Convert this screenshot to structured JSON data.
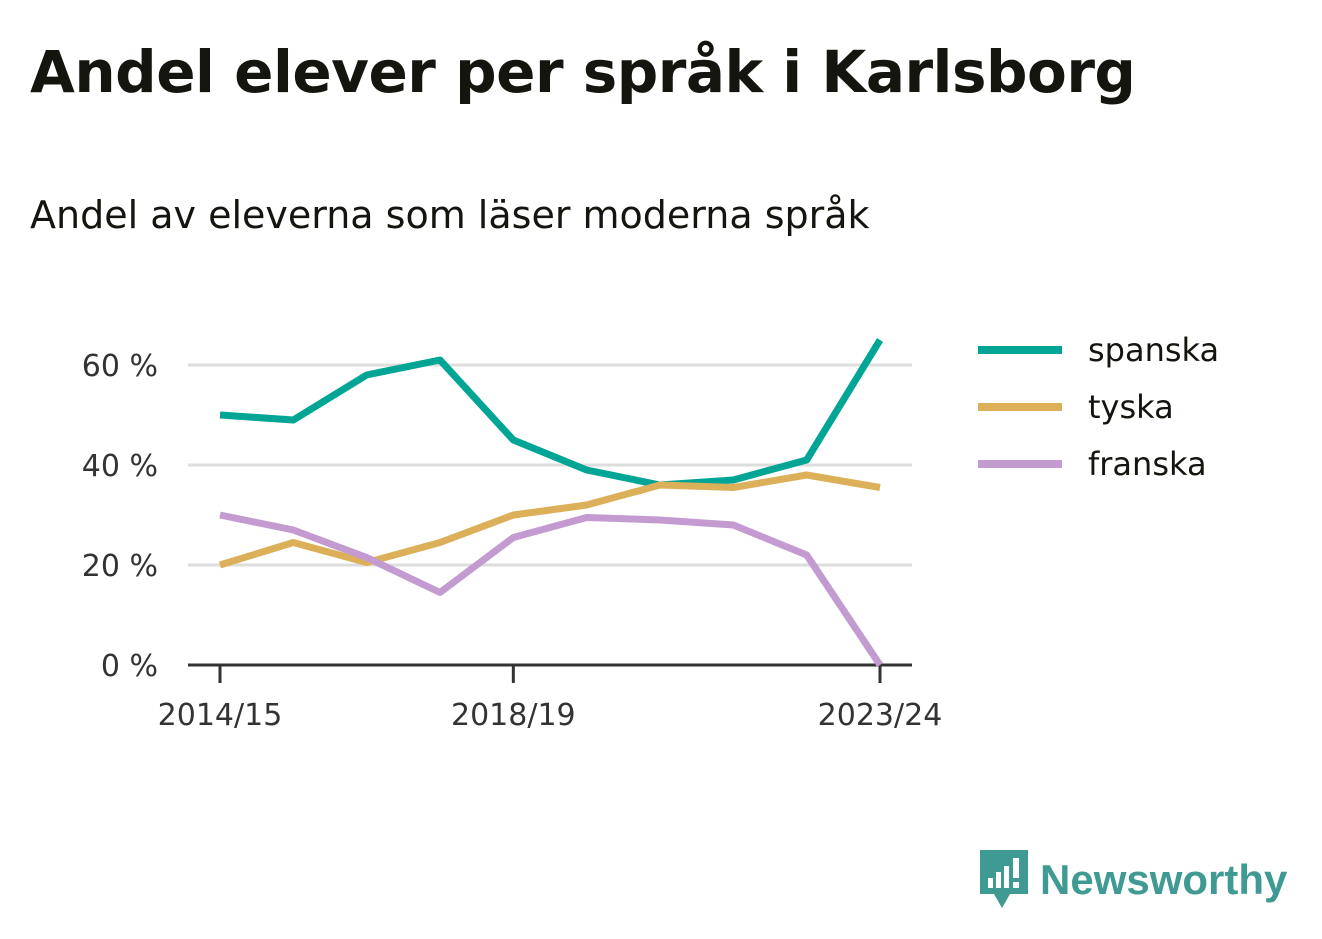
{
  "title": "Andel elever per språk i Karlsborg",
  "subtitle": "Andel av eleverna som läser moderna språk",
  "brand": {
    "name": "Newsworthy",
    "icon": "newsworthy-logo-icon",
    "color": "#3f9a93"
  },
  "chart_data": {
    "type": "line",
    "x": [
      "2014/15",
      "2015/16",
      "2016/17",
      "2017/18",
      "2018/19",
      "2019/20",
      "2020/21",
      "2021/22",
      "2022/23",
      "2023/24"
    ],
    "x_tick_labels": [
      "2014/15",
      "2018/19",
      "2023/24"
    ],
    "y_ticks": [
      0,
      20,
      40,
      60
    ],
    "y_tick_labels": [
      "0 %",
      "20 %",
      "40 %",
      "60 %"
    ],
    "ylim": [
      0,
      70
    ],
    "grid": true,
    "legend_position": "right",
    "series": [
      {
        "name": "spanska",
        "color": "#00a595",
        "values": [
          50,
          49,
          58,
          61,
          45,
          39,
          36,
          37,
          41,
          65
        ]
      },
      {
        "name": "tyska",
        "color": "#dcb059",
        "values": [
          20,
          24.5,
          20.5,
          24.5,
          30,
          32,
          36,
          35.5,
          38,
          35.5
        ]
      },
      {
        "name": "franska",
        "color": "#c39bd0",
        "values": [
          30,
          27,
          21.5,
          14.5,
          25.5,
          29.5,
          29,
          28,
          22,
          0
        ]
      }
    ]
  }
}
